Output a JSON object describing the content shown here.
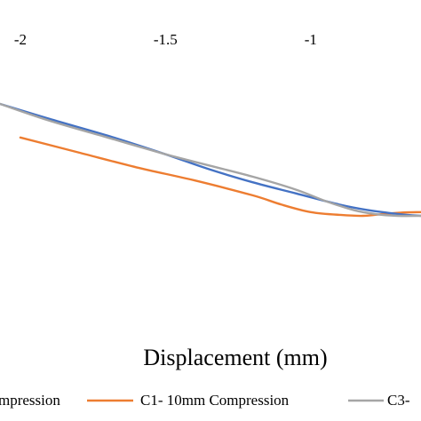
{
  "chart_data": {
    "type": "line",
    "title": "",
    "xlabel": "Displacement (mm)",
    "ylabel": "",
    "x_tick_labels": [
      "-2",
      "-1.5",
      "-1"
    ],
    "x_ticks": [
      -2,
      -1.5,
      -1
    ],
    "xlim": [
      -2.07,
      -0.62
    ],
    "ylim": [
      0,
      1
    ],
    "grid": false,
    "legend_position": "bottom",
    "series": [
      {
        "name": "mpression",
        "color": "#4472C4",
        "x": [
          -2.07,
          -1.9,
          -1.7,
          -1.5,
          -1.35,
          -1.2,
          -1.05,
          -0.9,
          -0.8,
          -0.7,
          -0.62
        ],
        "y": [
          0.9,
          0.82,
          0.73,
          0.63,
          0.55,
          0.48,
          0.42,
          0.36,
          0.33,
          0.31,
          0.3
        ]
      },
      {
        "name": "C1- 10mm Compression",
        "color": "#ED7D31",
        "x": [
          -2.0,
          -1.8,
          -1.6,
          -1.4,
          -1.2,
          -1.1,
          -1.0,
          -0.9,
          -0.82,
          -0.75,
          -0.68,
          -0.62
        ],
        "y": [
          0.72,
          0.64,
          0.56,
          0.49,
          0.41,
          0.36,
          0.32,
          0.305,
          0.3,
          0.31,
          0.318,
          0.32
        ]
      },
      {
        "name": "C3-",
        "color": "#A5A5A5",
        "x": [
          -2.07,
          -1.9,
          -1.7,
          -1.5,
          -1.35,
          -1.2,
          -1.05,
          -0.95,
          -0.85,
          -0.78,
          -0.7,
          -0.62
        ],
        "y": [
          0.9,
          0.81,
          0.72,
          0.63,
          0.57,
          0.51,
          0.44,
          0.38,
          0.33,
          0.31,
          0.3,
          0.3
        ]
      }
    ]
  }
}
